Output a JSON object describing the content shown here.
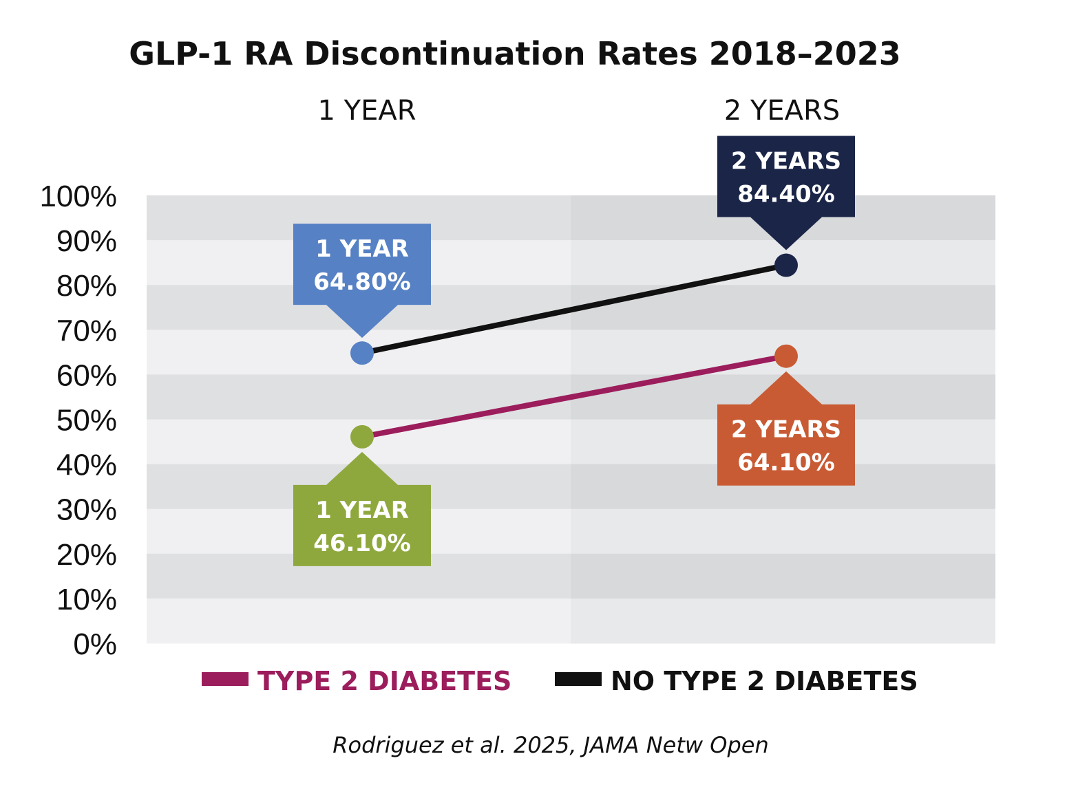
{
  "colors": {
    "band_dark": "#dfe0e2",
    "band_light": "#f0f0f2",
    "col2_dark": "#d8d9db",
    "col2_light": "#e8e9eb",
    "type2_line": "#9c1d5c",
    "no_type2_line": "#111111",
    "callout_blue": "#5681c4",
    "callout_navy": "#1a2548",
    "callout_orange": "#c85b34",
    "callout_olive": "#8fa83e"
  },
  "chart_data": {
    "type": "line",
    "title": "GLP-1  RA Discontinuation Rates 2018–2023",
    "categories": [
      "1 YEAR",
      "2 YEARS"
    ],
    "y_ticks": [
      "0%",
      "10%",
      "20%",
      "30%",
      "40%",
      "50%",
      "60%",
      "70%",
      "80%",
      "90%",
      "100%"
    ],
    "ylim": [
      0,
      100
    ],
    "grid": "alternating horizontal bands",
    "legend_position": "bottom",
    "series": [
      {
        "name": "NO TYPE 2 DIABETES",
        "values": [
          64.8,
          84.4
        ],
        "callouts": [
          {
            "line1": "1 YEAR",
            "line2": "64.80%",
            "color": "#5681c4",
            "marker": "#5681c4",
            "side": "above"
          },
          {
            "line1": "2 YEARS",
            "line2": "84.40%",
            "color": "#1a2548",
            "marker": "#1a2548",
            "side": "above"
          }
        ]
      },
      {
        "name": "TYPE 2 DIABETES",
        "values": [
          46.1,
          64.1
        ],
        "callouts": [
          {
            "line1": "1 YEAR",
            "line2": "46.10%",
            "color": "#8fa83e",
            "marker": "#8fa83e",
            "side": "below"
          },
          {
            "line1": "2 YEARS",
            "line2": "64.10%",
            "color": "#c85b34",
            "marker": "#c85b34",
            "side": "below"
          }
        ]
      }
    ],
    "legend": [
      {
        "label": "TYPE 2 DIABETES",
        "color": "#9c1d5c"
      },
      {
        "label": "NO TYPE 2 DIABETES",
        "color": "#111111"
      }
    ],
    "source": "Rodriguez et al. 2025, JAMA Netw Open"
  }
}
